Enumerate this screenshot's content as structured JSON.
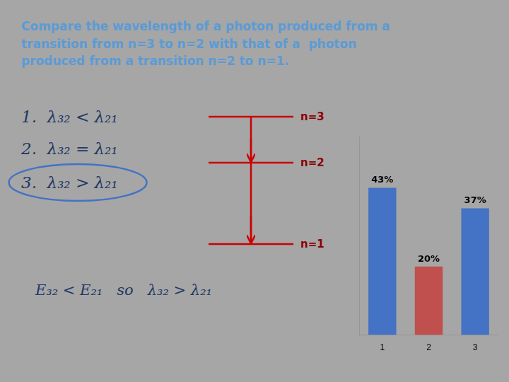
{
  "chart_data": {
    "type": "bar",
    "title": "Compare the wavelength of a photon produced from a\ntransition from n=3 to n=2 with that of a  photon\nproduced from a transition n=2 to n=1.",
    "categories": [
      "1",
      "2",
      "3"
    ],
    "values": [
      43,
      20,
      37
    ],
    "value_labels": [
      "43%",
      "20%",
      "37%"
    ],
    "colors": [
      "#4472c4",
      "#c0504d",
      "#4472c4"
    ],
    "data_labels": true,
    "ylim": [
      0,
      58
    ],
    "tick_labels": "x",
    "grid": false,
    "annotations": [
      "1.  λ₃₂ < λ₂₁",
      "2.  λ₃₂ = λ₂₁",
      "3.  λ₃₂ > λ₂₁",
      "n=3",
      "n=2",
      "n=1",
      "E₃₂ < E₂₁   so   λ₃₂ > λ₂₁"
    ]
  }
}
